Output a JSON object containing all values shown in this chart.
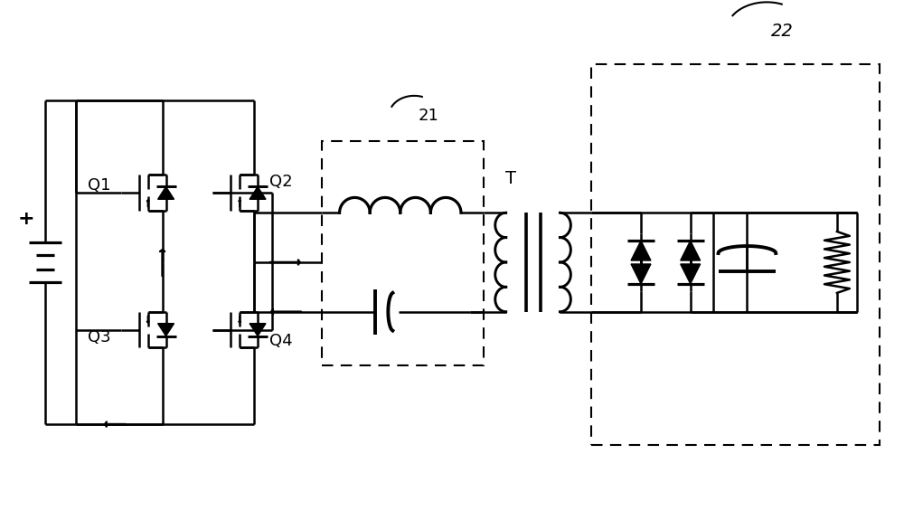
{
  "bg_color": "#ffffff",
  "line_color": "#000000",
  "lw": 1.8,
  "dlw": 1.5,
  "label_21": "21",
  "label_22": "22",
  "label_Q1": "Q1",
  "label_Q2": "Q2",
  "label_Q3": "Q3",
  "label_Q4": "Q4",
  "label_T": "T",
  "label_plus": "+",
  "fs": 13
}
